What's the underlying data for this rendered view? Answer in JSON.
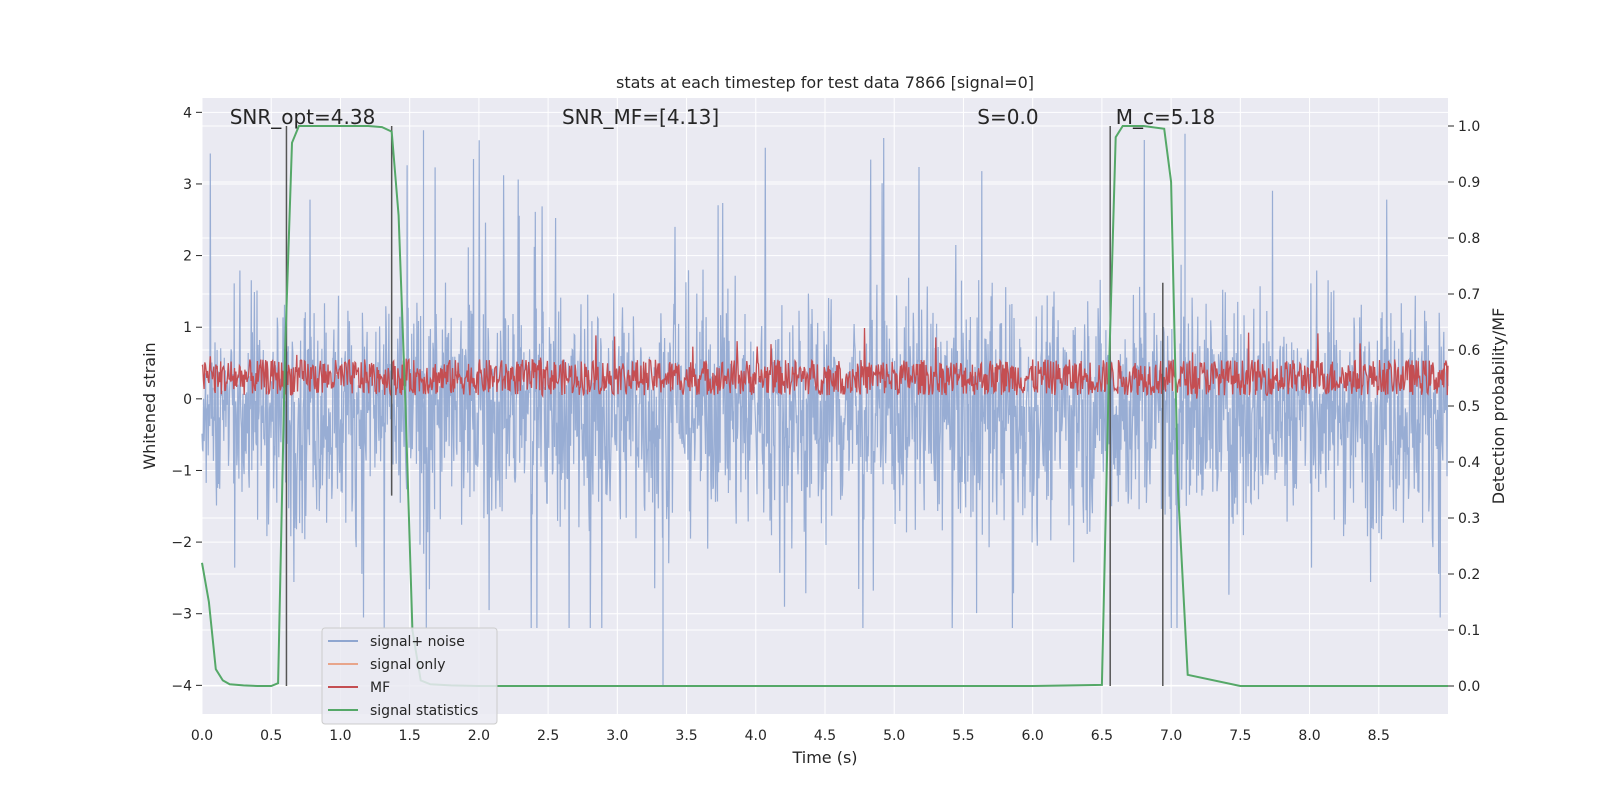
{
  "chart_data": {
    "type": "line",
    "title": "stats at each timestep for test data 7866 [signal=0]",
    "xlabel": "Time (s)",
    "ylabel": "Whitened strain",
    "y2label": "Detection probability/MF",
    "xlim": [
      0,
      9.0
    ],
    "ylim": [
      -4.4,
      4.2
    ],
    "y2lim": [
      -0.05,
      1.05
    ],
    "x_ticks": [
      0.0,
      0.5,
      1.0,
      1.5,
      2.0,
      2.5,
      3.0,
      3.5,
      4.0,
      4.5,
      5.0,
      5.5,
      6.0,
      6.5,
      7.0,
      7.5,
      8.0,
      8.5
    ],
    "x_tick_labels": [
      "0.0",
      "0.5",
      "1.0",
      "1.5",
      "2.0",
      "2.5",
      "3.0",
      "3.5",
      "4.0",
      "4.5",
      "5.0",
      "5.5",
      "6.0",
      "6.5",
      "7.0",
      "7.5",
      "8.0",
      "8.5"
    ],
    "y_ticks": [
      4,
      3,
      2,
      1,
      0,
      -1,
      -2,
      -3,
      -4
    ],
    "y_tick_labels": [
      "4",
      "3",
      "2",
      "1",
      "0",
      "−1",
      "−2",
      "−3",
      "−4"
    ],
    "y2_ticks": [
      1.0,
      0.9,
      0.8,
      0.7,
      0.6,
      0.5,
      0.4,
      0.3,
      0.2,
      0.1,
      0.0
    ],
    "y2_tick_labels": [
      "1.0",
      "0.9",
      "0.8",
      "0.7",
      "0.6",
      "0.5",
      "0.4",
      "0.3",
      "0.2",
      "0.1",
      "0.0"
    ],
    "annotations": [
      {
        "text": "SNR_opt=4.38",
        "x": 0.2
      },
      {
        "text": "SNR_MF=[4.13]",
        "x": 2.6
      },
      {
        "text": "S=0.0",
        "x": 5.6
      },
      {
        "text": "M_c=5.18",
        "x": 6.6
      }
    ],
    "series": [
      {
        "name": "signal+ noise",
        "color": "#8fa6d0",
        "axis": "left",
        "description": "whitened noise, range approx -4 to 3.8",
        "spikes": [
          {
            "x": 3.33,
            "y": -4.0
          },
          {
            "x": 1.6,
            "y": 3.75
          },
          {
            "x": 7.1,
            "y": 3.7
          }
        ]
      },
      {
        "name": "signal only",
        "color": "#e8a58b",
        "axis": "left",
        "values": []
      },
      {
        "name": "MF",
        "color": "#c44e52",
        "axis": "left",
        "center": 0.3,
        "spread": 0.25
      },
      {
        "name": "signal statistics",
        "color": "#55a868",
        "axis": "right",
        "x": [
          0.0,
          0.05,
          0.1,
          0.15,
          0.2,
          0.3,
          0.4,
          0.5,
          0.55,
          0.6,
          0.65,
          0.7,
          0.8,
          0.9,
          1.0,
          1.1,
          1.2,
          1.3,
          1.37,
          1.42,
          1.47,
          1.52,
          1.58,
          1.65,
          1.8,
          2.0,
          3.0,
          4.0,
          5.0,
          6.0,
          6.5,
          6.55,
          6.6,
          6.65,
          6.8,
          6.95,
          7.0,
          7.05,
          7.12,
          7.5,
          8.0,
          9.0
        ],
        "values": [
          0.22,
          0.15,
          0.03,
          0.01,
          0.003,
          0.001,
          0.0,
          0.0,
          0.005,
          0.6,
          0.97,
          1.0,
          1.0,
          1.0,
          1.0,
          1.0,
          1.0,
          0.998,
          0.99,
          0.84,
          0.5,
          0.1,
          0.01,
          0.003,
          0.001,
          0.0,
          0.0,
          0.0,
          0.0,
          0.0,
          0.002,
          0.55,
          0.98,
          1.0,
          1.0,
          0.995,
          0.9,
          0.35,
          0.02,
          0.0,
          0.0,
          0.0
        ]
      },
      {
        "name": "vertical markers",
        "color": "#555555",
        "axis": "right",
        "lines": [
          {
            "x": 0.61,
            "y1": 0.0,
            "y2": 1.0
          },
          {
            "x": 1.37,
            "y1": 0.34,
            "y2": 1.0
          },
          {
            "x": 6.56,
            "y1": 0.0,
            "y2": 1.0
          },
          {
            "x": 6.94,
            "y1": 0.0,
            "y2": 0.72
          }
        ]
      }
    ],
    "legend": {
      "placement": "lower-left",
      "items": [
        "signal+ noise",
        "signal only",
        "MF",
        "signal statistics"
      ]
    },
    "grid": true
  }
}
